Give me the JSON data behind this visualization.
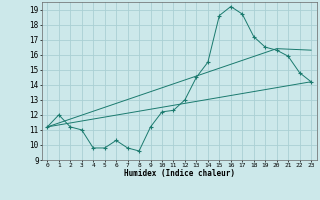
{
  "xlabel": "Humidex (Indice chaleur)",
  "bg_color": "#cce8ea",
  "grid_color": "#aad0d4",
  "line_color": "#1a7a6e",
  "xlim": [
    -0.5,
    23.5
  ],
  "ylim": [
    9,
    19.5
  ],
  "xticks": [
    0,
    1,
    2,
    3,
    4,
    5,
    6,
    7,
    8,
    9,
    10,
    11,
    12,
    13,
    14,
    15,
    16,
    17,
    18,
    19,
    20,
    21,
    22,
    23
  ],
  "yticks": [
    9,
    10,
    11,
    12,
    13,
    14,
    15,
    16,
    17,
    18,
    19
  ],
  "line1_x": [
    0,
    1,
    2,
    3,
    4,
    5,
    6,
    7,
    8,
    9,
    10,
    11,
    12,
    13,
    14,
    15,
    16,
    17,
    18,
    19,
    20,
    21,
    22,
    23
  ],
  "line1_y": [
    11.2,
    12.0,
    11.2,
    11.0,
    9.8,
    9.8,
    10.3,
    9.8,
    9.6,
    11.2,
    12.2,
    12.3,
    13.0,
    14.5,
    15.5,
    18.6,
    19.2,
    18.7,
    17.2,
    16.5,
    16.3,
    15.9,
    14.8,
    14.2
  ],
  "line2_x": [
    0,
    23
  ],
  "line2_y": [
    11.2,
    14.2
  ],
  "line3_x": [
    0,
    20,
    23
  ],
  "line3_y": [
    11.2,
    16.4,
    16.3
  ]
}
